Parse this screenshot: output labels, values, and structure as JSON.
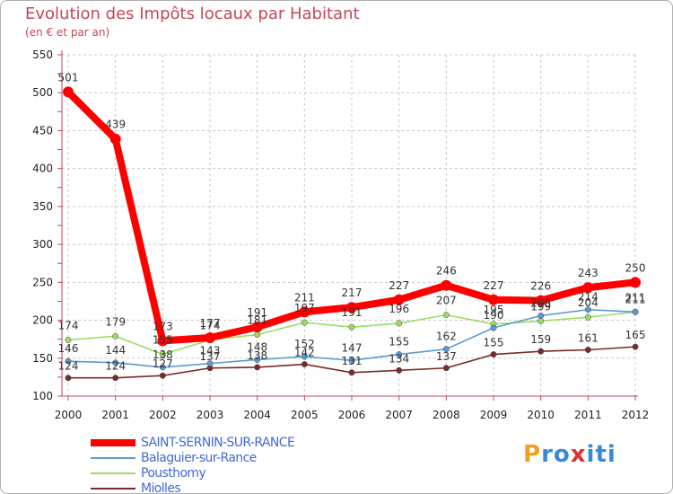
{
  "chart_data": {
    "type": "line",
    "title": "Evolution des Impôts locaux par Habitant",
    "subtitle": "(en € et par an)",
    "xlabel": "",
    "ylabel": "",
    "ylim": [
      100,
      550
    ],
    "yticks": [
      "100",
      "150",
      "200",
      "250",
      "300",
      "350",
      "400",
      "450",
      "500",
      "550"
    ],
    "categories": [
      "2000",
      "2001",
      "2002",
      "2003",
      "2004",
      "2005",
      "2006",
      "2007",
      "2008",
      "2009",
      "2010",
      "2011",
      "2012"
    ],
    "grid": true,
    "legend_position": "bottom-left",
    "series": [
      {
        "name": "Miolles",
        "color": "#7a2a2a",
        "values": [
          124,
          124,
          127,
          137,
          138,
          142,
          131,
          134,
          137,
          155,
          159,
          161,
          165
        ]
      },
      {
        "name": "Pousthomy",
        "color": "#99dd66",
        "values": [
          174,
          179,
          155,
          174,
          181,
          197,
          191,
          196,
          207,
          195,
          199,
          204,
          211
        ]
      },
      {
        "name": "Balaguier-sur-Rance",
        "color": "#5b9bd0",
        "values": [
          146,
          144,
          138,
          143,
          148,
          152,
          147,
          155,
          162,
          190,
          206,
          214,
          211
        ]
      },
      {
        "name": "SAINT-SERNIN-SUR-RANCE",
        "color": "#ff0000",
        "values": [
          501,
          439,
          173,
          177,
          191,
          211,
          217,
          227,
          246,
          227,
          226,
          243,
          250
        ]
      }
    ],
    "value_labels": [
      {
        "series": "SAINT-SERNIN-SUR-RANCE",
        "texts": [
          "501",
          "439",
          "173",
          "177",
          "191",
          "211",
          "217",
          "227",
          "246",
          "227",
          "226",
          "243",
          "250"
        ]
      },
      {
        "series": "Pousthomy",
        "texts": [
          "174",
          "179",
          "155",
          "174",
          "181",
          "197",
          "191",
          "196",
          "207",
          "195",
          "199",
          "204",
          "211"
        ]
      },
      {
        "series": "Balaguier-sur-Rance",
        "texts": [
          "146",
          "144",
          "138",
          "143",
          "148",
          "152",
          "147",
          "155",
          "162",
          "190",
          "206",
          "214",
          "211"
        ]
      },
      {
        "series": "Miolles",
        "texts": [
          "124",
          "124",
          "127",
          "137",
          "138",
          "142",
          "131",
          "134",
          "137",
          "155",
          "159",
          "161",
          "165"
        ]
      }
    ]
  },
  "legend": [
    {
      "label": "SAINT-SERNIN-SUR-RANCE",
      "color": "#ff0000"
    },
    {
      "label": "Balaguier-sur-Rance",
      "color": "#5b9bd0"
    },
    {
      "label": "Pousthomy",
      "color": "#99dd66"
    },
    {
      "label": "Miolles",
      "color": "#7a2a2a"
    }
  ],
  "logo": {
    "letters": [
      "P",
      "r",
      "o",
      "x",
      "i",
      "t",
      "i"
    ],
    "colors": [
      "#f0a020",
      "#3a8ad8",
      "#3a8ad8",
      "#e03030",
      "#3a8ad8",
      "#3a8ad8",
      "#3a8ad8"
    ]
  }
}
